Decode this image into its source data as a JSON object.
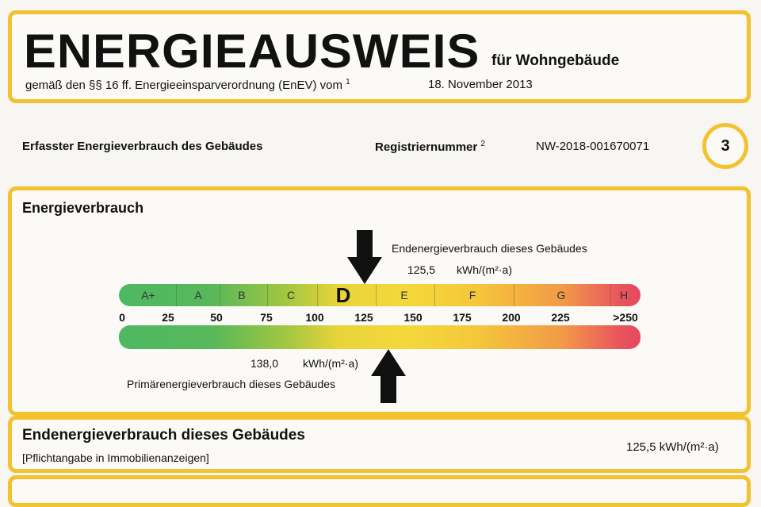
{
  "header": {
    "title": "ENERGIEAUSWEIS",
    "subtitle_right": "für Wohngebäude",
    "legal": "gemäß den §§ 16 ff. Energieeinsparverordnung (EnEV) vom",
    "legal_footnote": "1",
    "date": "18. November 2013"
  },
  "info_row": {
    "label": "Erfasster Energieverbrauch des Gebäudes",
    "reg_label": "Registriernummer",
    "reg_footnote": "2",
    "reg_number": "NW-2018-001670071",
    "page_number": "3"
  },
  "energy": {
    "heading": "Energieverbrauch",
    "end_label": "Endenergieverbrauch dieses Gebäudes",
    "end_value": "125,5",
    "end_unit": "kWh/(m²·a)",
    "primary_label": "Primärenergieverbrauch dieses Gebäudes",
    "primary_value": "138,0",
    "primary_unit": "kWh/(m²·a)",
    "classes": [
      "A+",
      "A",
      "B",
      "C",
      "D",
      "E",
      "F",
      "G",
      "H"
    ],
    "active_class": "D",
    "ticks": [
      "0",
      "25",
      "50",
      "75",
      "100",
      "125",
      "150",
      "175",
      "200",
      "225",
      ">250"
    ]
  },
  "summary": {
    "title": "Endenergieverbrauch dieses Gebäudes",
    "note": "[Pflichtangabe in Immobilienanzeigen]",
    "value": "125,5 kWh/(m²·a)"
  },
  "colors": {
    "border": "#f2c230",
    "scale_start": "#4db862",
    "scale_mid": "#f4d83a",
    "scale_end": "#e6485c"
  }
}
